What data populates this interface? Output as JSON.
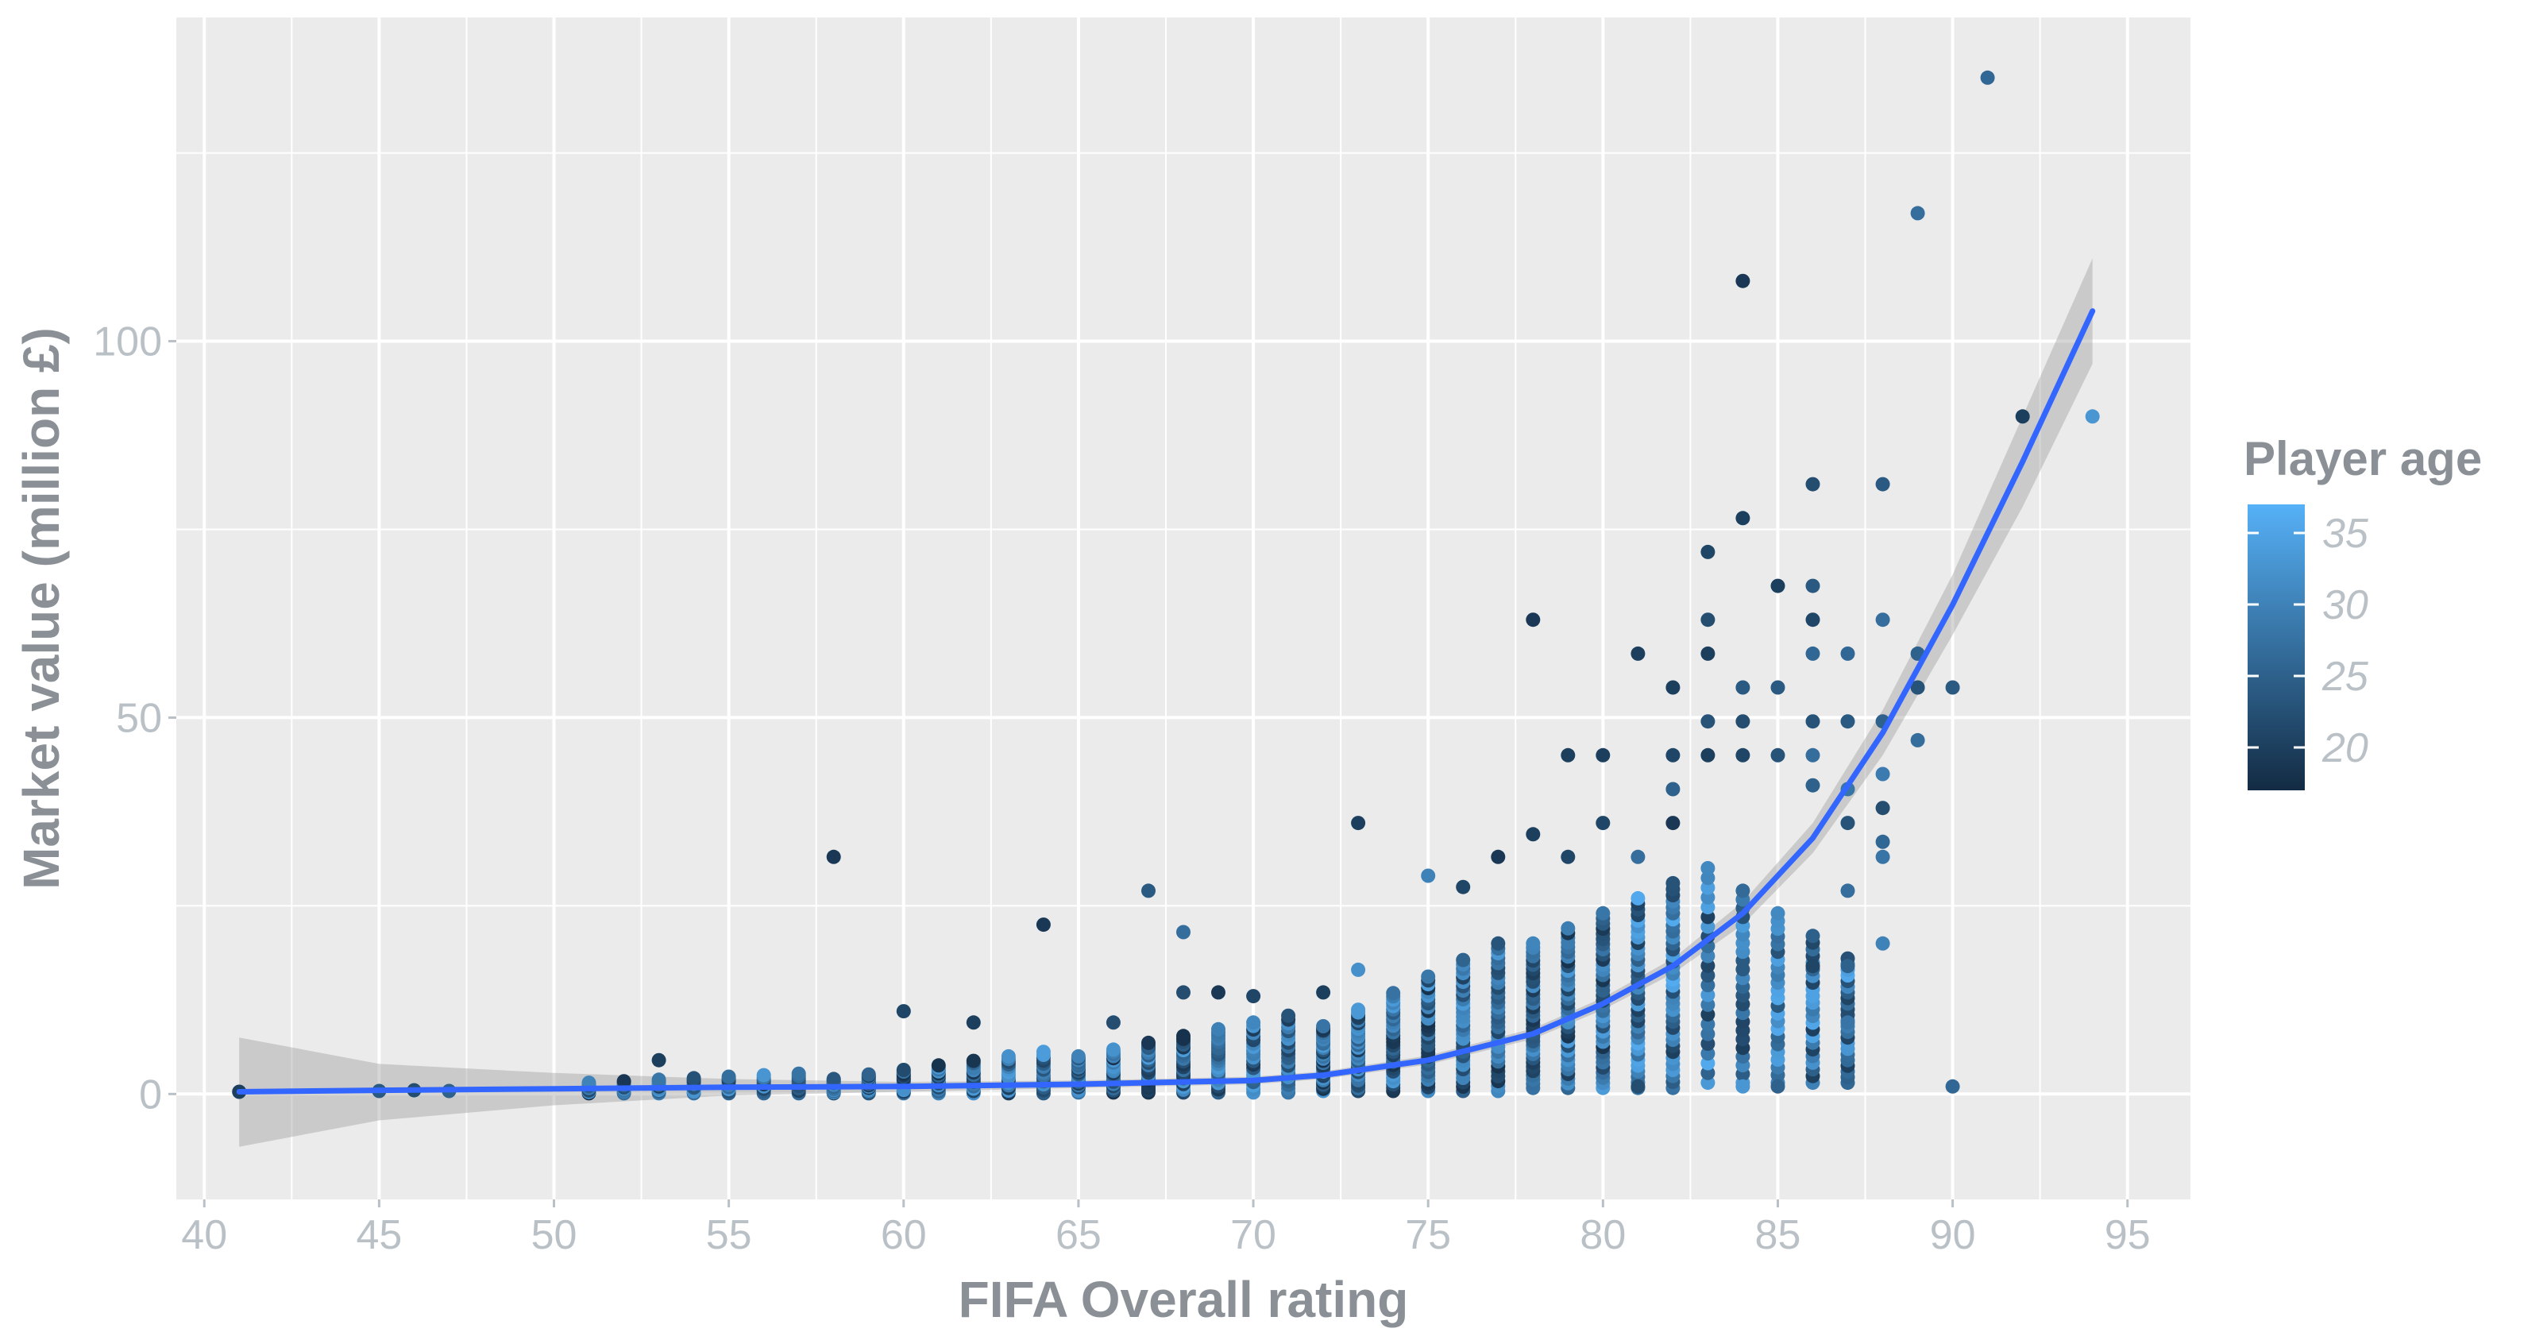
{
  "chart_data": {
    "type": "scatter",
    "xlabel": "FIFA Overall rating",
    "ylabel": "Market value (million £)",
    "xlim": [
      39.2,
      96.8
    ],
    "ylim": [
      -14,
      143
    ],
    "x_ticks": [
      40,
      45,
      50,
      55,
      60,
      65,
      70,
      75,
      80,
      85,
      90,
      95
    ],
    "y_ticks": [
      0,
      50,
      100
    ],
    "grid": true,
    "legend": {
      "title": "Player age",
      "type": "colorbar",
      "placement": "right",
      "range": [
        17,
        37
      ],
      "ticks": [
        20,
        25,
        30,
        35
      ],
      "color_low": "#132b43",
      "color_high": "#56b1f7"
    },
    "trend": {
      "type": "smooth",
      "color": "#3366ff",
      "band_color": "#999999",
      "points": [
        {
          "x": 41,
          "y": 0.3,
          "lo": -7,
          "hi": 7.5
        },
        {
          "x": 45,
          "y": 0.5,
          "lo": -3.5,
          "hi": 4
        },
        {
          "x": 50,
          "y": 0.7,
          "lo": -1.5,
          "hi": 2.8
        },
        {
          "x": 55,
          "y": 0.9,
          "lo": -0.2,
          "hi": 2
        },
        {
          "x": 60,
          "y": 1.0,
          "lo": 0.3,
          "hi": 1.6
        },
        {
          "x": 65,
          "y": 1.3,
          "lo": 0.8,
          "hi": 1.8
        },
        {
          "x": 70,
          "y": 1.8,
          "lo": 1.3,
          "hi": 2.3
        },
        {
          "x": 72,
          "y": 2.5,
          "lo": 2.0,
          "hi": 3.0
        },
        {
          "x": 75,
          "y": 4.5,
          "lo": 3.9,
          "hi": 5.1
        },
        {
          "x": 78,
          "y": 8.0,
          "lo": 7.3,
          "hi": 8.7
        },
        {
          "x": 80,
          "y": 12,
          "lo": 11.2,
          "hi": 12.8
        },
        {
          "x": 82,
          "y": 17,
          "lo": 16,
          "hi": 18
        },
        {
          "x": 84,
          "y": 24,
          "lo": 22.5,
          "hi": 25.5
        },
        {
          "x": 86,
          "y": 34,
          "lo": 32,
          "hi": 36
        },
        {
          "x": 88,
          "y": 48,
          "lo": 45,
          "hi": 51
        },
        {
          "x": 90,
          "y": 65,
          "lo": 61,
          "hi": 69
        },
        {
          "x": 92,
          "y": 84,
          "lo": 78,
          "hi": 90
        },
        {
          "x": 94,
          "y": 104,
          "lo": 97,
          "hi": 111
        }
      ]
    },
    "outliers": [
      {
        "x": 41,
        "y": 0.3,
        "age": 20
      },
      {
        "x": 45,
        "y": 0.4,
        "age": 24
      },
      {
        "x": 46,
        "y": 0.5,
        "age": 22
      },
      {
        "x": 47,
        "y": 0.4,
        "age": 25
      },
      {
        "x": 53,
        "y": 4.5,
        "age": 20
      },
      {
        "x": 58,
        "y": 31.5,
        "age": 19
      },
      {
        "x": 60,
        "y": 11,
        "age": 21
      },
      {
        "x": 62,
        "y": 9.5,
        "age": 20
      },
      {
        "x": 64,
        "y": 22.5,
        "age": 19
      },
      {
        "x": 66,
        "y": 9.5,
        "age": 22
      },
      {
        "x": 67,
        "y": 27,
        "age": 24
      },
      {
        "x": 68,
        "y": 21.5,
        "age": 27
      },
      {
        "x": 68,
        "y": 13.5,
        "age": 22
      },
      {
        "x": 69,
        "y": 13.5,
        "age": 19
      },
      {
        "x": 70,
        "y": 13,
        "age": 21
      },
      {
        "x": 72,
        "y": 13.5,
        "age": 20
      },
      {
        "x": 73,
        "y": 36,
        "age": 20
      },
      {
        "x": 73,
        "y": 16.5,
        "age": 32
      },
      {
        "x": 75,
        "y": 29,
        "age": 30
      },
      {
        "x": 76,
        "y": 27.5,
        "age": 21
      },
      {
        "x": 77,
        "y": 31.5,
        "age": 19
      },
      {
        "x": 78,
        "y": 63,
        "age": 19
      },
      {
        "x": 78,
        "y": 34.5,
        "age": 20
      },
      {
        "x": 79,
        "y": 45,
        "age": 20
      },
      {
        "x": 79,
        "y": 31.5,
        "age": 21
      },
      {
        "x": 80,
        "y": 45,
        "age": 20
      },
      {
        "x": 80,
        "y": 36,
        "age": 21
      },
      {
        "x": 81,
        "y": 58.5,
        "age": 20
      },
      {
        "x": 81,
        "y": 31.5,
        "age": 27
      },
      {
        "x": 81,
        "y": 1,
        "age": 22
      },
      {
        "x": 82,
        "y": 54,
        "age": 20
      },
      {
        "x": 82,
        "y": 45,
        "age": 21
      },
      {
        "x": 82,
        "y": 40.5,
        "age": 25
      },
      {
        "x": 82,
        "y": 36,
        "age": 19
      },
      {
        "x": 83,
        "y": 72,
        "age": 21
      },
      {
        "x": 83,
        "y": 63,
        "age": 22
      },
      {
        "x": 83,
        "y": 58.5,
        "age": 20
      },
      {
        "x": 83,
        "y": 49.5,
        "age": 23
      },
      {
        "x": 83,
        "y": 45,
        "age": 20
      },
      {
        "x": 84,
        "y": 108,
        "age": 19
      },
      {
        "x": 84,
        "y": 76.5,
        "age": 20
      },
      {
        "x": 84,
        "y": 54,
        "age": 24
      },
      {
        "x": 84,
        "y": 49.5,
        "age": 22
      },
      {
        "x": 84,
        "y": 45,
        "age": 21
      },
      {
        "x": 84,
        "y": 1,
        "age": 33
      },
      {
        "x": 85,
        "y": 67.5,
        "age": 20
      },
      {
        "x": 85,
        "y": 54,
        "age": 24
      },
      {
        "x": 85,
        "y": 45,
        "age": 23
      },
      {
        "x": 85,
        "y": 1,
        "age": 25
      },
      {
        "x": 86,
        "y": 81,
        "age": 22
      },
      {
        "x": 86,
        "y": 67.5,
        "age": 24
      },
      {
        "x": 86,
        "y": 63,
        "age": 21
      },
      {
        "x": 86,
        "y": 58.5,
        "age": 26
      },
      {
        "x": 86,
        "y": 49.5,
        "age": 23
      },
      {
        "x": 86,
        "y": 45,
        "age": 27
      },
      {
        "x": 86,
        "y": 41,
        "age": 25
      },
      {
        "x": 86,
        "y": 17,
        "age": 21
      },
      {
        "x": 87,
        "y": 58.5,
        "age": 26
      },
      {
        "x": 87,
        "y": 49.5,
        "age": 24
      },
      {
        "x": 87,
        "y": 40.5,
        "age": 28
      },
      {
        "x": 87,
        "y": 36,
        "age": 23
      },
      {
        "x": 87,
        "y": 27,
        "age": 27
      },
      {
        "x": 87,
        "y": 17,
        "age": 25
      },
      {
        "x": 87,
        "y": 9.5,
        "age": 28
      },
      {
        "x": 88,
        "y": 81,
        "age": 24
      },
      {
        "x": 88,
        "y": 63,
        "age": 27
      },
      {
        "x": 88,
        "y": 49.5,
        "age": 25
      },
      {
        "x": 88,
        "y": 42.5,
        "age": 29
      },
      {
        "x": 88,
        "y": 38,
        "age": 22
      },
      {
        "x": 88,
        "y": 33.5,
        "age": 26
      },
      {
        "x": 88,
        "y": 31.5,
        "age": 28
      },
      {
        "x": 88,
        "y": 20,
        "age": 30
      },
      {
        "x": 89,
        "y": 117,
        "age": 27
      },
      {
        "x": 89,
        "y": 58.5,
        "age": 25
      },
      {
        "x": 89,
        "y": 54,
        "age": 23
      },
      {
        "x": 89,
        "y": 47,
        "age": 27
      },
      {
        "x": 90,
        "y": 54,
        "age": 24
      },
      {
        "x": 90,
        "y": 1,
        "age": 26
      },
      {
        "x": 91,
        "y": 135,
        "age": 26
      },
      {
        "x": 92,
        "y": 90,
        "age": 20
      },
      {
        "x": 94,
        "y": 90,
        "age": 33
      }
    ]
  }
}
